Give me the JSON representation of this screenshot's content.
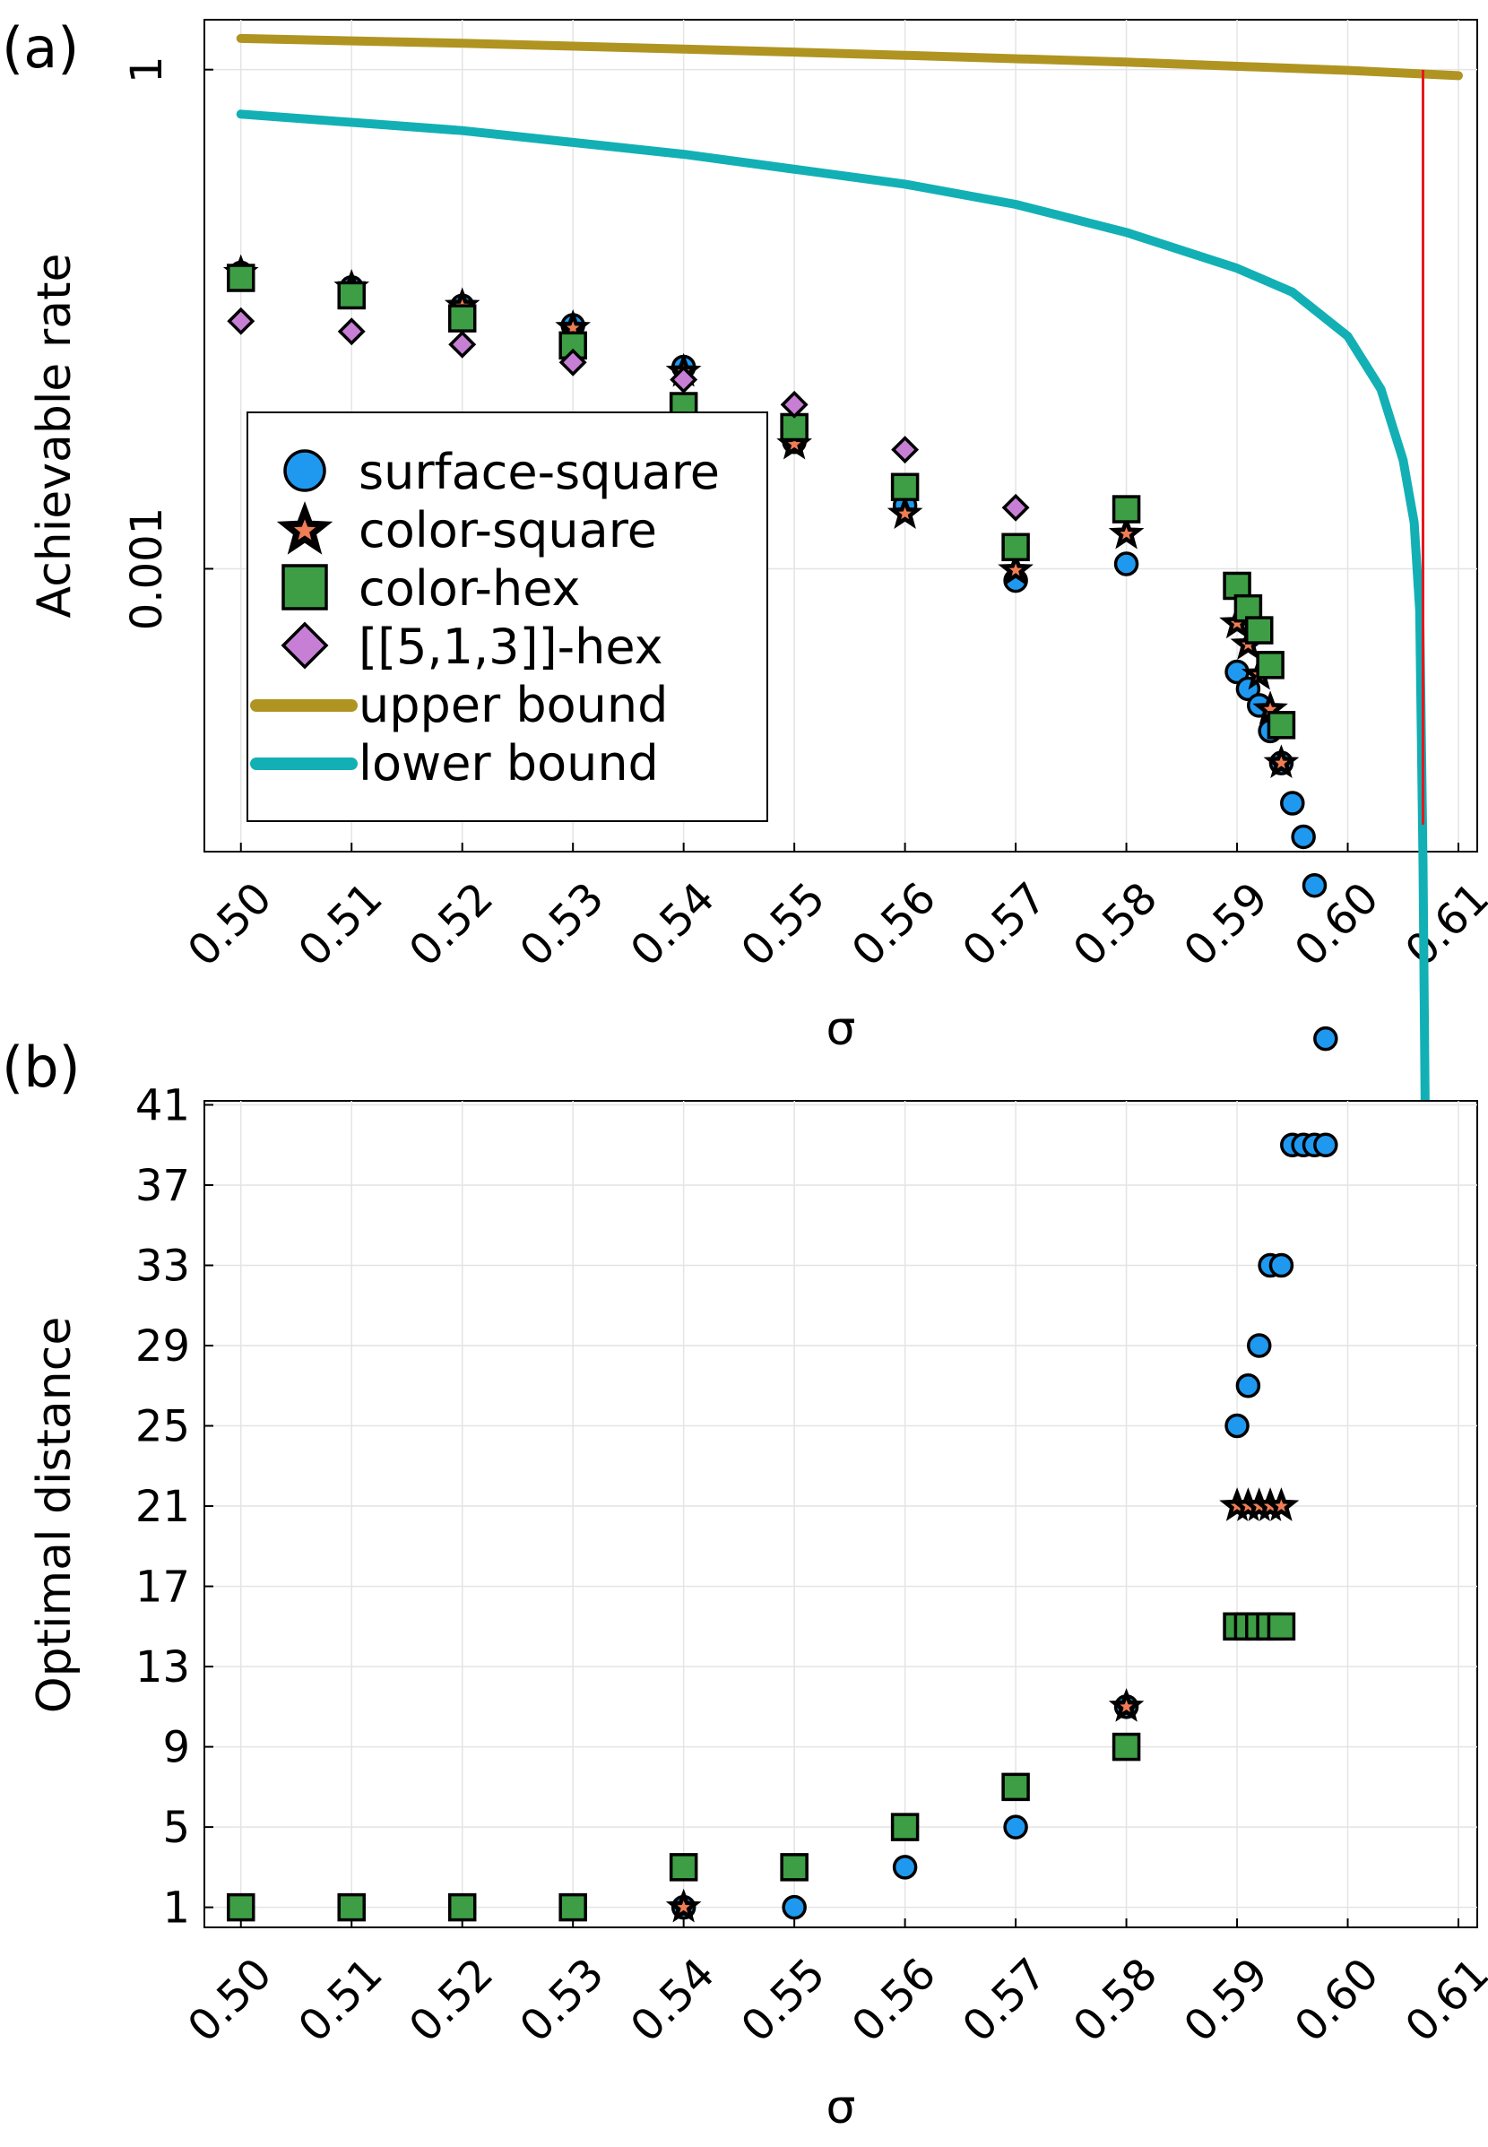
{
  "colors": {
    "surface_square": "#1f99f0",
    "color_square_star": "#f07d55",
    "color_hex": "#3e9e45",
    "hex513": "#c77fd6",
    "upper_bound": "#b09422",
    "lower_bound": "#12b0b5",
    "threshold": "#e8171d"
  },
  "chart_data": [
    {
      "panel_label": "(a)",
      "type": "scatter",
      "xlabel": "σ",
      "ylabel": "Achievable rate",
      "yscale": "log",
      "xlim": [
        0.4967,
        0.6117
      ],
      "ylim_log10": [
        -4.7,
        0.3
      ],
      "xticks": [
        0.5,
        0.51,
        0.52,
        0.53,
        0.54,
        0.55,
        0.56,
        0.57,
        0.58,
        0.59,
        0.6,
        0.61
      ],
      "xtick_labels": [
        "0.50",
        "0.51",
        "0.52",
        "0.53",
        "0.54",
        "0.55",
        "0.56",
        "0.57",
        "0.58",
        "0.59",
        "0.60",
        "0.61"
      ],
      "yticks": [
        1,
        0.001
      ],
      "ytick_labels": [
        "1",
        "0.001"
      ],
      "grid": true,
      "legend": {
        "position": "lower-left",
        "entries": [
          "surface-square",
          "color-square",
          "color-hex",
          "[[5,1,3]]-hex",
          "upper bound",
          "lower bound"
        ]
      },
      "series": [
        {
          "name": "surface-square",
          "marker": "circle",
          "x": [
            0.5,
            0.51,
            0.52,
            0.53,
            0.54,
            0.55,
            0.56,
            0.57,
            0.58,
            0.59,
            0.591,
            0.592,
            0.593,
            0.594,
            0.595,
            0.596,
            0.597,
            0.598
          ],
          "y": [
            0.06,
            0.049,
            0.038,
            0.029,
            0.0163,
            0.0058,
            0.0024,
            0.00085,
            0.00107,
            0.00024,
            0.00019,
            0.000151,
            0.000106,
            6.8e-05,
            3.9e-05,
            2.45e-05,
            1.25e-05,
            1.5e-06
          ]
        },
        {
          "name": "color-square",
          "marker": "star",
          "x": [
            0.5,
            0.51,
            0.52,
            0.53,
            0.54,
            0.55,
            0.56,
            0.57,
            0.58,
            0.59,
            0.591,
            0.592,
            0.593,
            0.594
          ],
          "y": [
            0.06,
            0.049,
            0.038,
            0.028,
            0.0153,
            0.0056,
            0.00214,
            0.00098,
            0.00162,
            0.00047,
            0.00035,
            0.000231,
            0.000143,
            6.8e-05
          ]
        },
        {
          "name": "color-hex",
          "marker": "square",
          "x": [
            0.5,
            0.51,
            0.52,
            0.53,
            0.54,
            0.55,
            0.56,
            0.57,
            0.58,
            0.59,
            0.591,
            0.592,
            0.593,
            0.594
          ],
          "y": [
            0.056,
            0.044,
            0.032,
            0.022,
            0.0095,
            0.0071,
            0.0031,
            0.00135,
            0.00228,
            0.00079,
            0.000578,
            0.000427,
            0.000264,
            0.000115
          ]
        },
        {
          "name": "[[5,1,3]]-hex",
          "marker": "diamond",
          "x": [
            0.5,
            0.51,
            0.52,
            0.53,
            0.54,
            0.55,
            0.56,
            0.57
          ],
          "y": [
            0.0308,
            0.0267,
            0.0223,
            0.0174,
            0.0137,
            0.0097,
            0.0052,
            0.00233
          ]
        },
        {
          "name": "upper bound",
          "type": "line",
          "x": [
            0.5,
            0.52,
            0.54,
            0.56,
            0.58,
            0.6,
            0.61
          ],
          "y": [
            1.54,
            1.44,
            1.33,
            1.22,
            1.11,
            0.99,
            0.92
          ]
        },
        {
          "name": "lower bound",
          "type": "line",
          "x": [
            0.5,
            0.52,
            0.54,
            0.56,
            0.57,
            0.58,
            0.59,
            0.595,
            0.6,
            0.603,
            0.605,
            0.606,
            0.6065,
            0.6068,
            0.607
          ],
          "y": [
            0.54,
            0.43,
            0.31,
            0.205,
            0.155,
            0.105,
            0.064,
            0.046,
            0.025,
            0.012,
            0.0045,
            0.0019,
            0.00056,
            1.7e-05,
            5e-07
          ]
        },
        {
          "name": "threshold",
          "type": "vline",
          "x": 0.6068
        }
      ]
    },
    {
      "panel_label": "(b)",
      "type": "scatter",
      "xlabel": "σ",
      "ylabel": "Optimal distance",
      "xlim": [
        0.4967,
        0.6117
      ],
      "ylim": [
        0.0,
        41.2
      ],
      "xticks": [
        0.5,
        0.51,
        0.52,
        0.53,
        0.54,
        0.55,
        0.56,
        0.57,
        0.58,
        0.59,
        0.6,
        0.61
      ],
      "xtick_labels": [
        "0.50",
        "0.51",
        "0.52",
        "0.53",
        "0.54",
        "0.55",
        "0.56",
        "0.57",
        "0.58",
        "0.59",
        "0.60",
        "0.61"
      ],
      "yticks": [
        1,
        5,
        9,
        13,
        17,
        21,
        25,
        29,
        33,
        37,
        41
      ],
      "ytick_labels": [
        "1",
        "5",
        "9",
        "13",
        "17",
        "21",
        "25",
        "29",
        "33",
        "37",
        "41"
      ],
      "grid": true,
      "series": [
        {
          "name": "surface-square",
          "marker": "circle",
          "x": [
            0.54,
            0.55,
            0.56,
            0.57,
            0.58,
            0.59,
            0.591,
            0.592,
            0.593,
            0.594,
            0.595,
            0.596,
            0.597,
            0.598
          ],
          "y": [
            1,
            1,
            3,
            5,
            11,
            25,
            27,
            29,
            33,
            33,
            39,
            39,
            39,
            39
          ]
        },
        {
          "name": "color-square",
          "marker": "star",
          "x": [
            0.54,
            0.58,
            0.59,
            0.591,
            0.592,
            0.593,
            0.594
          ],
          "y": [
            1,
            11,
            21,
            21,
            21,
            21,
            21
          ]
        },
        {
          "name": "color-hex",
          "marker": "square",
          "x": [
            0.5,
            0.51,
            0.52,
            0.53,
            0.54,
            0.55,
            0.56,
            0.57,
            0.58,
            0.59,
            0.591,
            0.592,
            0.593,
            0.594
          ],
          "y": [
            1,
            1,
            1,
            1,
            3,
            3,
            5,
            7,
            9,
            15,
            15,
            15,
            15,
            15
          ]
        }
      ]
    }
  ]
}
